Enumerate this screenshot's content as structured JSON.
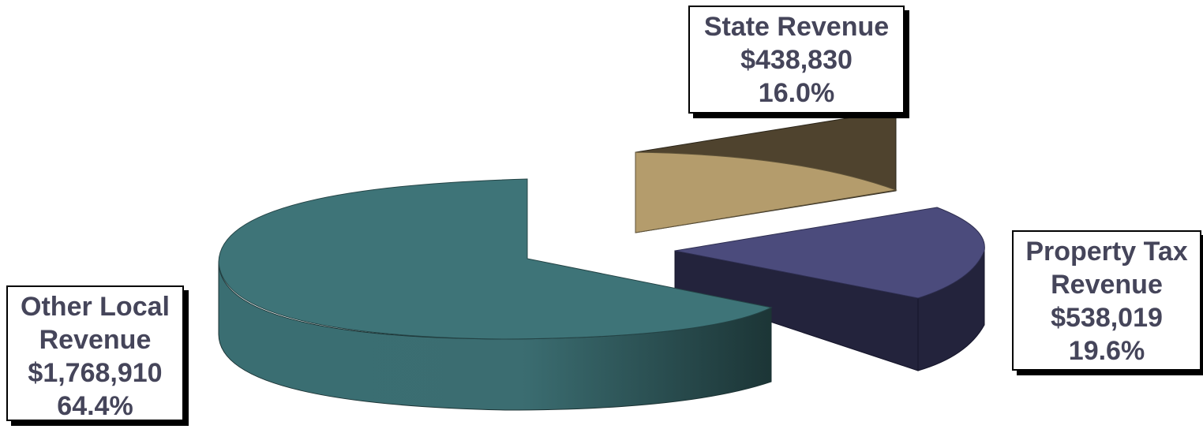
{
  "chart_data": {
    "type": "pie",
    "slices": [
      {
        "label_lines": [
          "State Revenue"
        ],
        "value": "$438,830",
        "percent": "16.0%",
        "amount": 438830,
        "pct": 16.0,
        "color": "#b49c6c",
        "side_color": "#4f432e"
      },
      {
        "label_lines": [
          "Property Tax",
          "Revenue"
        ],
        "value": "$538,019",
        "percent": "19.6%",
        "amount": 538019,
        "pct": 19.6,
        "color": "#4b4b7c",
        "side_color": "#23233c"
      },
      {
        "label_lines": [
          "Other Local",
          "Revenue"
        ],
        "value": "$1,768,910",
        "percent": "64.4%",
        "amount": 1768910,
        "pct": 64.4,
        "color": "#3e7478",
        "side_color": "#2e5a5e"
      }
    ]
  }
}
